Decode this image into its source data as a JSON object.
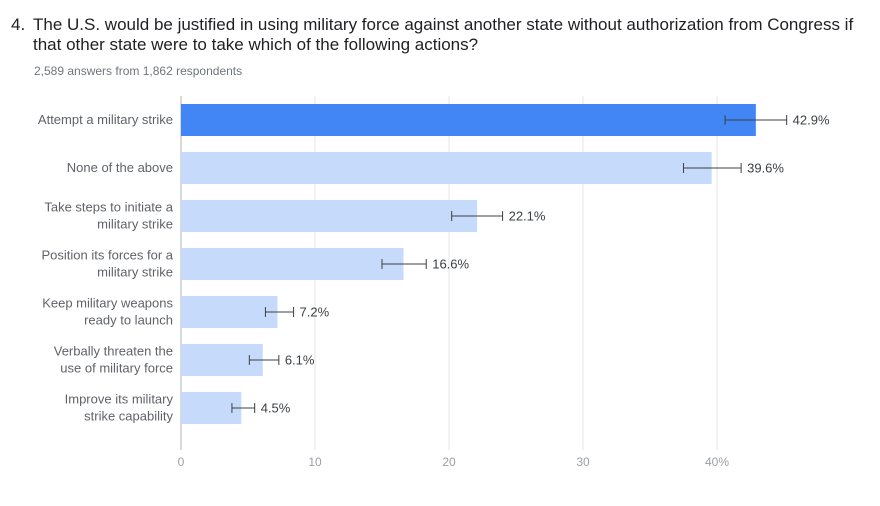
{
  "question": {
    "number": "4.",
    "text": "The U.S. would be justified in using military force against another state without authorization from Congress if that other state were to take which of the following actions?"
  },
  "summary": "2,589 answers from 1,862 respondents",
  "colors": {
    "highlight_bar": "#4285f4",
    "bar": "#c6dafc",
    "gridline": "#e6e6e6",
    "axis": "#b3b3b3",
    "label_text": "#5f6368",
    "tick_text": "#9aa0a6",
    "value_text": "#3c4043",
    "error_bar": "#3c4043"
  },
  "chart_data": {
    "type": "bar",
    "orientation": "horizontal",
    "categories": [
      [
        "Attempt a military strike"
      ],
      [
        "None of the above"
      ],
      [
        "Take steps to initiate a",
        "military strike"
      ],
      [
        "Position its forces for a",
        "military strike"
      ],
      [
        "Keep military weapons",
        "ready to launch"
      ],
      [
        "Verbally threaten the",
        "use of military force"
      ],
      [
        "Improve its military",
        "strike capability"
      ]
    ],
    "values": [
      42.9,
      39.6,
      22.1,
      16.6,
      7.2,
      6.1,
      4.5
    ],
    "value_labels": [
      "42.9%",
      "39.6%",
      "22.1%",
      "16.6%",
      "7.2%",
      "6.1%",
      "4.5%"
    ],
    "error_low": [
      40.6,
      37.5,
      20.2,
      15.0,
      6.3,
      5.1,
      3.8
    ],
    "error_high": [
      45.2,
      41.8,
      24.0,
      18.3,
      8.4,
      7.3,
      5.5
    ],
    "highlighted_index": 0,
    "xlim": [
      0,
      40
    ],
    "xticks": [
      0,
      10,
      20,
      30,
      40
    ],
    "xtick_labels": [
      "0",
      "10",
      "20",
      "30",
      "40%"
    ],
    "grid": true
  }
}
